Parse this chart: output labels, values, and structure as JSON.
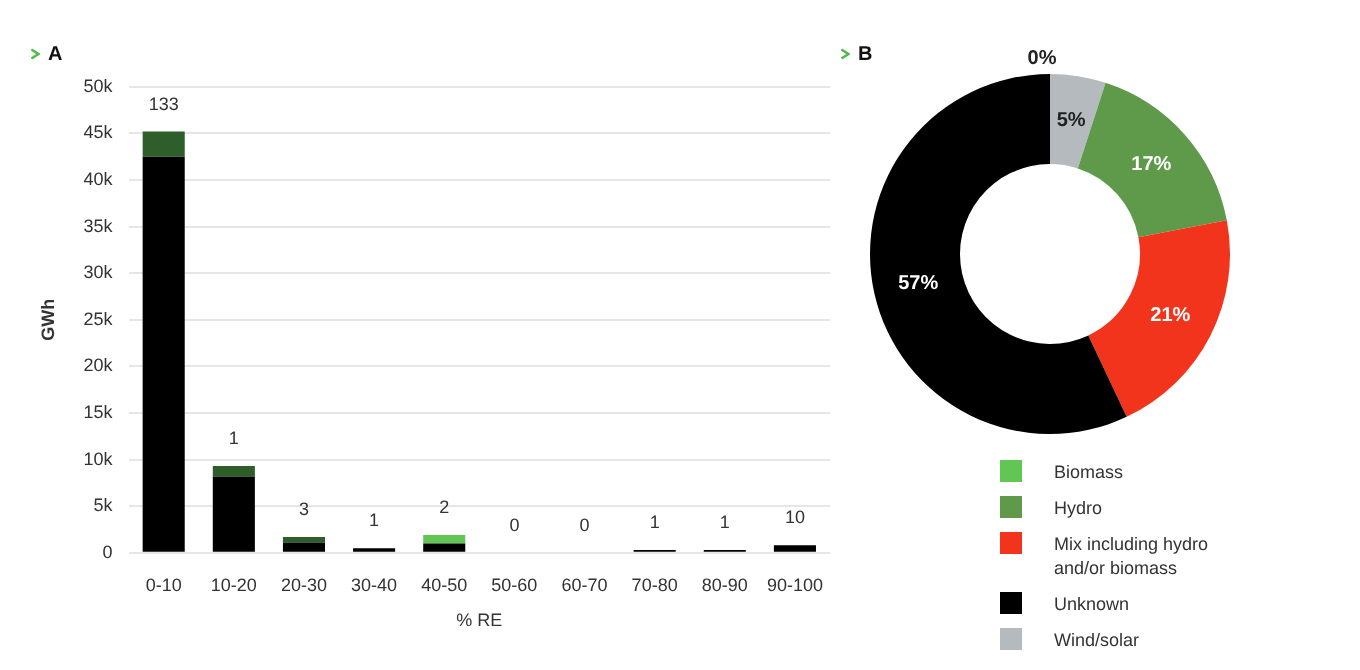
{
  "chart_data": [
    {
      "type": "bar",
      "title": "A",
      "xlabel": "% RE",
      "ylabel": "GWh",
      "categories": [
        "0-10",
        "10-20",
        "20-30",
        "30-40",
        "40-50",
        "50-60",
        "60-70",
        "70-80",
        "80-90",
        "90-100"
      ],
      "stacked": true,
      "series": [
        {
          "color": "#000000",
          "values": [
            42500,
            8200,
            1100,
            500,
            1000,
            0,
            0,
            300,
            300,
            800
          ]
        },
        {
          "color": "#2e5e2a",
          "values": [
            2700,
            1100,
            600,
            0,
            0,
            0,
            0,
            0,
            0,
            0
          ]
        },
        {
          "color": "#62c655",
          "values": [
            0,
            0,
            0,
            0,
            900,
            0,
            0,
            0,
            0,
            0
          ]
        }
      ],
      "ylim": [
        0,
        50000
      ],
      "yticks": [
        0,
        {
          "value": 5000,
          "label": "5k"
        },
        {
          "value": 10000,
          "label": "10k"
        },
        {
          "value": 15000,
          "label": "15k"
        },
        {
          "value": 20000,
          "label": "20k"
        },
        {
          "value": 25000,
          "label": "25k"
        },
        {
          "value": 30000,
          "label": "30k"
        },
        {
          "value": 35000,
          "label": "35k"
        },
        {
          "value": 40000,
          "label": "40k"
        },
        {
          "value": 45000,
          "label": "45k"
        },
        {
          "value": 50000,
          "label": "50k"
        }
      ],
      "grid": "y",
      "annotations": [
        {
          "text": "133",
          "x": "0-10",
          "y": 45200
        },
        {
          "text": "1",
          "x": "10-20",
          "y": 9300
        },
        {
          "text": "3",
          "x": "20-30",
          "y": 1700
        },
        {
          "text": "1",
          "x": "30-40",
          "y": 500
        },
        {
          "text": "2",
          "x": "40-50",
          "y": 1900
        },
        {
          "text": "0",
          "x": "50-60",
          "y": 0
        },
        {
          "text": "0",
          "x": "60-70",
          "y": 0
        },
        {
          "text": "1",
          "x": "70-80",
          "y": 300
        },
        {
          "text": "1",
          "x": "80-90",
          "y": 300
        },
        {
          "text": "10",
          "x": "90-100",
          "y": 800
        }
      ]
    },
    {
      "type": "donut",
      "title": "B",
      "categories": [
        "Biomass",
        "Wind/solar",
        "Hydro",
        "Mix including hydro and/or biomass",
        "Unknown"
      ],
      "values": [
        0,
        5,
        17,
        21,
        57
      ],
      "colors": [
        "#62c655",
        "#b4babd",
        "#5f9a4b",
        "#f2341c",
        "#000000"
      ],
      "value_labels": [
        "0%",
        "5%",
        "17%",
        "21%",
        "57%"
      ],
      "legend": "bottom"
    }
  ]
}
